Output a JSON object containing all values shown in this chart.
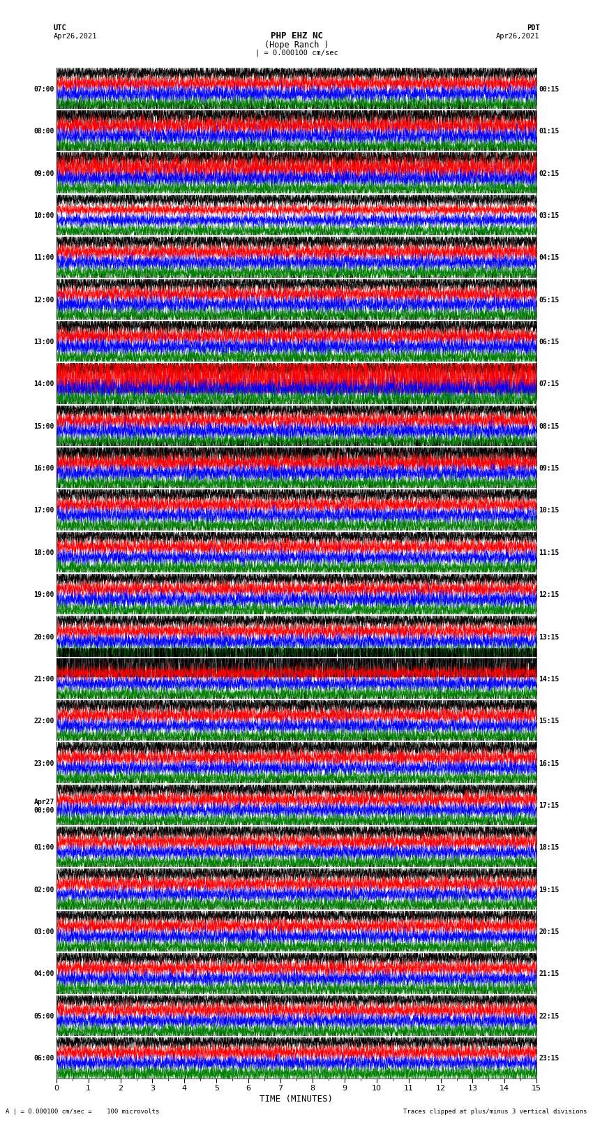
{
  "title_line1": "PHP EHZ NC",
  "title_line2": "(Hope Ranch )",
  "title_scale": "| = 0.000100 cm/sec",
  "label_utc": "UTC",
  "label_pdt": "PDT",
  "date_left": "Apr26,2021",
  "date_right": "Apr26,2021",
  "xlabel": "TIME (MINUTES)",
  "footnote_left": "A | = 0.000100 cm/sec =    100 microvolts",
  "footnote_right": "Traces clipped at plus/minus 3 vertical divisions",
  "left_times": [
    "07:00",
    "08:00",
    "09:00",
    "10:00",
    "11:00",
    "12:00",
    "13:00",
    "14:00",
    "15:00",
    "16:00",
    "17:00",
    "18:00",
    "19:00",
    "20:00",
    "21:00",
    "22:00",
    "23:00",
    "Apr27\n00:00",
    "01:00",
    "02:00",
    "03:00",
    "04:00",
    "05:00",
    "06:00"
  ],
  "right_times": [
    "00:15",
    "01:15",
    "02:15",
    "03:15",
    "04:15",
    "05:15",
    "06:15",
    "07:15",
    "08:15",
    "09:15",
    "10:15",
    "11:15",
    "12:15",
    "13:15",
    "14:15",
    "15:15",
    "16:15",
    "17:15",
    "18:15",
    "19:15",
    "20:15",
    "21:15",
    "22:15",
    "23:15"
  ],
  "n_rows": 24,
  "n_traces_per_row": 4,
  "trace_colors": [
    "black",
    "red",
    "blue",
    "green"
  ],
  "bg_color": "white",
  "fig_width": 8.5,
  "fig_height": 16.13,
  "xmin": 0,
  "xmax": 15,
  "xticks": [
    0,
    1,
    2,
    3,
    4,
    5,
    6,
    7,
    8,
    9,
    10,
    11,
    12,
    13,
    14,
    15
  ],
  "n_pts": 9000
}
